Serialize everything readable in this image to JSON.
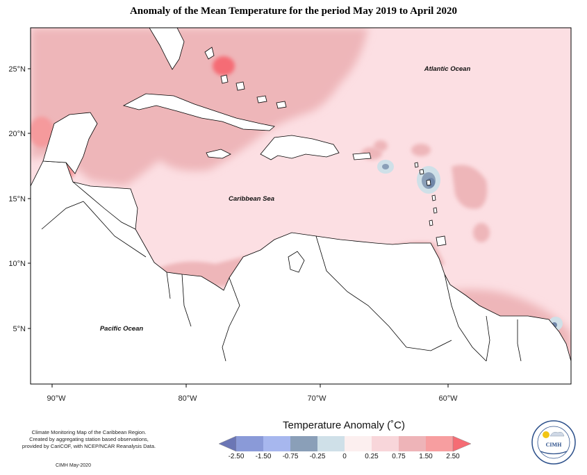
{
  "title": "Anomaly of the Mean Temperature for the period May 2019 to April 2020",
  "map": {
    "lat_labels": [
      "25°N",
      "20°N",
      "15°N",
      "10°N",
      "5°N"
    ],
    "lon_labels": [
      "90°W",
      "80°W",
      "70°W",
      "60°W"
    ],
    "ocean_labels": {
      "atlantic": "Atlantic Ocean",
      "caribbean": "Caribbean Sea",
      "pacific": "Pacific Ocean"
    }
  },
  "legend": {
    "title": "Temperature Anomaly (˚C)",
    "ticks": [
      "-2.50",
      "-1.50",
      "-0.75",
      "-0.25",
      "0",
      "0.25",
      "0.75",
      "1.50",
      "2.50"
    ],
    "colors": [
      "#6b76b5",
      "#8a9ad8",
      "#a7b7ee",
      "#8a9fb8",
      "#cfe0e8",
      "#fcefef",
      "#f8d6da",
      "#eeb4b8",
      "#f79ea0",
      "#f56c74"
    ]
  },
  "credits": {
    "line1": "Climate Monitoring Map of the Caribbean Region.",
    "line2": "Created by aggregating station based observations,",
    "line3": "provided by CariCOF, with NCEP/NCAR Reanalysis Data.",
    "stamp": "CIMH May-2020"
  },
  "logo": {
    "name": "CIMH"
  },
  "colors": {
    "anomaly_low": "#fcdfe3",
    "anomaly_mid": "#eeb6b9",
    "anomaly_high": "#f59a9c",
    "cool": "#6f86a8",
    "land_border": "#000000"
  }
}
